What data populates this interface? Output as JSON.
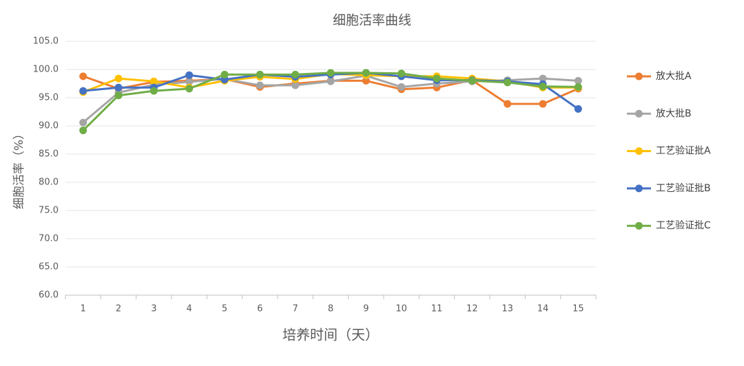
{
  "chart_data": {
    "type": "line",
    "title": "细胞活率曲线",
    "x_label": "培养时间（天）",
    "y_label": "细胞活率（%）",
    "categories": [
      "1",
      "2",
      "3",
      "4",
      "5",
      "6",
      "7",
      "8",
      "9",
      "10",
      "11",
      "12",
      "13",
      "14",
      "15"
    ],
    "ylim": [
      60,
      105
    ],
    "yticks": [
      {
        "value": 60,
        "label": "60.0"
      },
      {
        "value": 65,
        "label": "65.0"
      },
      {
        "value": 70,
        "label": "70.0"
      },
      {
        "value": 75,
        "label": "75.0"
      },
      {
        "value": 80,
        "label": "80.0"
      },
      {
        "value": 85,
        "label": "85.0"
      },
      {
        "value": 90,
        "label": "90.0"
      },
      {
        "value": 95,
        "label": "95.0"
      },
      {
        "value": 100,
        "label": "100.0"
      },
      {
        "value": 105,
        "label": "105.0"
      }
    ],
    "grid": true,
    "legend": "right",
    "series": [
      {
        "name": "放大批A",
        "color": "#ED7D31",
        "values": [
          98.8,
          96.6,
          97.8,
          98.0,
          98.3,
          96.9,
          97.5,
          98.0,
          98.0,
          96.5,
          96.8,
          98.1,
          93.9,
          93.9,
          96.6
        ]
      },
      {
        "name": "放大批B",
        "color": "#A5A5A5",
        "values": [
          90.6,
          95.9,
          97.3,
          97.8,
          98.3,
          97.2,
          97.2,
          97.9,
          98.9,
          96.9,
          97.5,
          97.9,
          98.1,
          98.4,
          98.0
        ]
      },
      {
        "name": "工艺验证批A",
        "color": "#FFC000",
        "values": [
          96.0,
          98.4,
          97.9,
          96.8,
          98.0,
          98.7,
          98.3,
          99.2,
          99.0,
          98.8,
          98.8,
          98.4,
          97.9,
          96.8,
          96.8
        ]
      },
      {
        "name": "工艺验证批B",
        "color": "#4472C4",
        "values": [
          96.2,
          96.8,
          96.8,
          99.0,
          98.2,
          99.1,
          98.7,
          99.1,
          99.4,
          98.8,
          98.1,
          98.1,
          97.9,
          97.4,
          93.0
        ]
      },
      {
        "name": "工艺验证批C",
        "color": "#70AD47",
        "values": [
          89.2,
          95.4,
          96.2,
          96.6,
          99.1,
          99.1,
          99.1,
          99.4,
          99.4,
          99.3,
          98.4,
          98.0,
          97.7,
          97.0,
          96.9
        ]
      }
    ]
  }
}
